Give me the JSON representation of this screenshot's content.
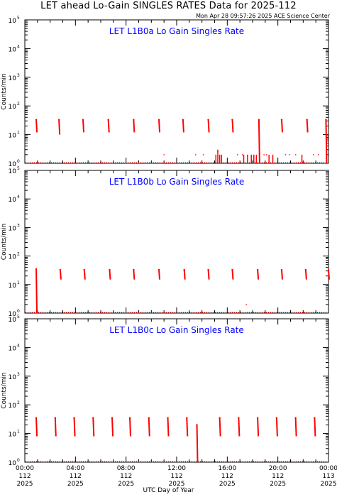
{
  "header": {
    "title": "LET ahead Lo-Gain SINGLES RATES Data for 2025-112",
    "timestamp": "Mon Apr 28 09:57:26 2025 ACE Science Center"
  },
  "colors": {
    "data": "#ff0000",
    "panel_title": "#0000ff",
    "axes": "#000000"
  },
  "chart_data": [
    {
      "type": "scatter",
      "title": "LET L1B0a Lo Gain Singles Rate",
      "ylabel": "Counts/min",
      "yscale": "log",
      "ylim": [
        1,
        100000
      ],
      "yticks": [
        "10",
        "10",
        "10",
        "10",
        "10",
        "10"
      ],
      "yexponents": [
        "0",
        "1",
        "2",
        "3",
        "4",
        "5"
      ],
      "xlim": [
        0,
        24
      ],
      "bursts": [
        {
          "t": 0.9,
          "low": 12,
          "high": 33
        },
        {
          "t": 2.7,
          "low": 10,
          "high": 33
        },
        {
          "t": 4.6,
          "low": 12,
          "high": 33
        },
        {
          "t": 6.6,
          "low": 12,
          "high": 33
        },
        {
          "t": 8.6,
          "low": 12,
          "high": 33
        },
        {
          "t": 10.6,
          "low": 12,
          "high": 33
        },
        {
          "t": 12.5,
          "low": 12,
          "high": 33
        },
        {
          "t": 14.5,
          "low": 12,
          "high": 33
        },
        {
          "t": 16.4,
          "low": 12,
          "high": 33
        },
        {
          "t": 18.5,
          "low": 1,
          "high": 33
        },
        {
          "t": 20.3,
          "low": 12,
          "high": 33
        },
        {
          "t": 22.3,
          "low": 12,
          "high": 33
        },
        {
          "t": 23.8,
          "low": 1,
          "high": 33
        }
      ],
      "spikes": [
        {
          "t": 15.1,
          "value": 2
        },
        {
          "t": 15.25,
          "value": 3
        },
        {
          "t": 15.4,
          "value": 2
        },
        {
          "t": 15.55,
          "value": 2
        },
        {
          "t": 17.3,
          "value": 2
        },
        {
          "t": 17.6,
          "value": 2
        },
        {
          "t": 17.9,
          "value": 2
        },
        {
          "t": 18.1,
          "value": 2
        },
        {
          "t": 18.3,
          "value": 2
        },
        {
          "t": 19.3,
          "value": 2
        },
        {
          "t": 19.6,
          "value": 2
        },
        {
          "t": 21.9,
          "value": 2
        }
      ],
      "scattered_points": [
        {
          "t": 13.5,
          "value": 2
        },
        {
          "t": 14.1,
          "value": 2
        },
        {
          "t": 16.8,
          "value": 2
        },
        {
          "t": 17.2,
          "value": 2
        },
        {
          "t": 18.9,
          "value": 2
        },
        {
          "t": 19.1,
          "value": 2
        },
        {
          "t": 20.6,
          "value": 2
        },
        {
          "t": 20.9,
          "value": 2
        },
        {
          "t": 21.4,
          "value": 2
        },
        {
          "t": 22.8,
          "value": 2
        },
        {
          "t": 23.2,
          "value": 2
        },
        {
          "t": 11.0,
          "value": 2
        }
      ]
    },
    {
      "type": "scatter",
      "title": "LET L1B0b Lo Gain Singles Rate",
      "ylabel": "Counts/min",
      "yscale": "log",
      "ylim": [
        1,
        100000
      ],
      "yticks": [
        "10",
        "10",
        "10",
        "10",
        "10",
        "10"
      ],
      "yexponents": [
        "0",
        "1",
        "2",
        "3",
        "4",
        "5"
      ],
      "xlim": [
        0,
        24
      ],
      "bursts": [
        {
          "t": 0.9,
          "low": 1,
          "high": 35
        },
        {
          "t": 2.8,
          "low": 15,
          "high": 33
        },
        {
          "t": 4.7,
          "low": 15,
          "high": 33
        },
        {
          "t": 6.7,
          "low": 15,
          "high": 33
        },
        {
          "t": 8.6,
          "low": 15,
          "high": 33
        },
        {
          "t": 10.6,
          "low": 15,
          "high": 33
        },
        {
          "t": 12.6,
          "low": 15,
          "high": 33
        },
        {
          "t": 14.5,
          "low": 15,
          "high": 33
        },
        {
          "t": 16.4,
          "low": 15,
          "high": 33
        },
        {
          "t": 18.4,
          "low": 15,
          "high": 33
        },
        {
          "t": 20.3,
          "low": 15,
          "high": 33
        },
        {
          "t": 22.2,
          "low": 15,
          "high": 33
        },
        {
          "t": 24.0,
          "low": 15,
          "high": 33
        }
      ],
      "spikes": [],
      "scattered_points": [
        {
          "t": 17.5,
          "value": 2
        }
      ]
    },
    {
      "type": "scatter",
      "title": "LET L1B0c Lo Gain Singles Rate",
      "ylabel": "Counts/min",
      "yscale": "log",
      "ylim": [
        1,
        100000
      ],
      "yticks": [
        "10",
        "10",
        "10",
        "10",
        "10",
        "10"
      ],
      "yexponents": [
        "0",
        "1",
        "2",
        "3",
        "4",
        "5"
      ],
      "xlim": [
        0,
        24
      ],
      "xticks": [
        {
          "t": 0,
          "time": "00:00",
          "doy": "112",
          "year": "2025"
        },
        {
          "t": 4,
          "time": "04:00",
          "doy": "112",
          "year": "2025"
        },
        {
          "t": 8,
          "time": "08:00",
          "doy": "112",
          "year": "2025"
        },
        {
          "t": 12,
          "time": "12:00",
          "doy": "112",
          "year": "2025"
        },
        {
          "t": 16,
          "time": "16:00",
          "doy": "112",
          "year": "2025"
        },
        {
          "t": 20,
          "time": "20:00",
          "doy": "112",
          "year": "2025"
        },
        {
          "t": 24,
          "time": "00:00",
          "doy": "113",
          "year": "2025"
        }
      ],
      "xlabel": "UTC Day of Year",
      "bursts": [
        {
          "t": 0.9,
          "low": 8,
          "high": 35
        },
        {
          "t": 2.4,
          "low": 8,
          "high": 35
        },
        {
          "t": 3.9,
          "low": 8,
          "high": 35
        },
        {
          "t": 5.4,
          "low": 8,
          "high": 35
        },
        {
          "t": 6.9,
          "low": 8,
          "high": 35
        },
        {
          "t": 8.3,
          "low": 8,
          "high": 35
        },
        {
          "t": 9.8,
          "low": 8,
          "high": 35
        },
        {
          "t": 11.3,
          "low": 8,
          "high": 35
        },
        {
          "t": 12.8,
          "low": 8,
          "high": 35
        },
        {
          "t": 13.6,
          "low": 1,
          "high": 20
        },
        {
          "t": 15.4,
          "low": 8,
          "high": 35
        },
        {
          "t": 16.9,
          "low": 8,
          "high": 35
        },
        {
          "t": 18.4,
          "low": 8,
          "high": 35
        },
        {
          "t": 19.9,
          "low": 8,
          "high": 35
        },
        {
          "t": 21.4,
          "low": 8,
          "high": 35
        },
        {
          "t": 22.9,
          "low": 8,
          "high": 35
        }
      ],
      "spikes": [],
      "scattered_points": []
    }
  ]
}
